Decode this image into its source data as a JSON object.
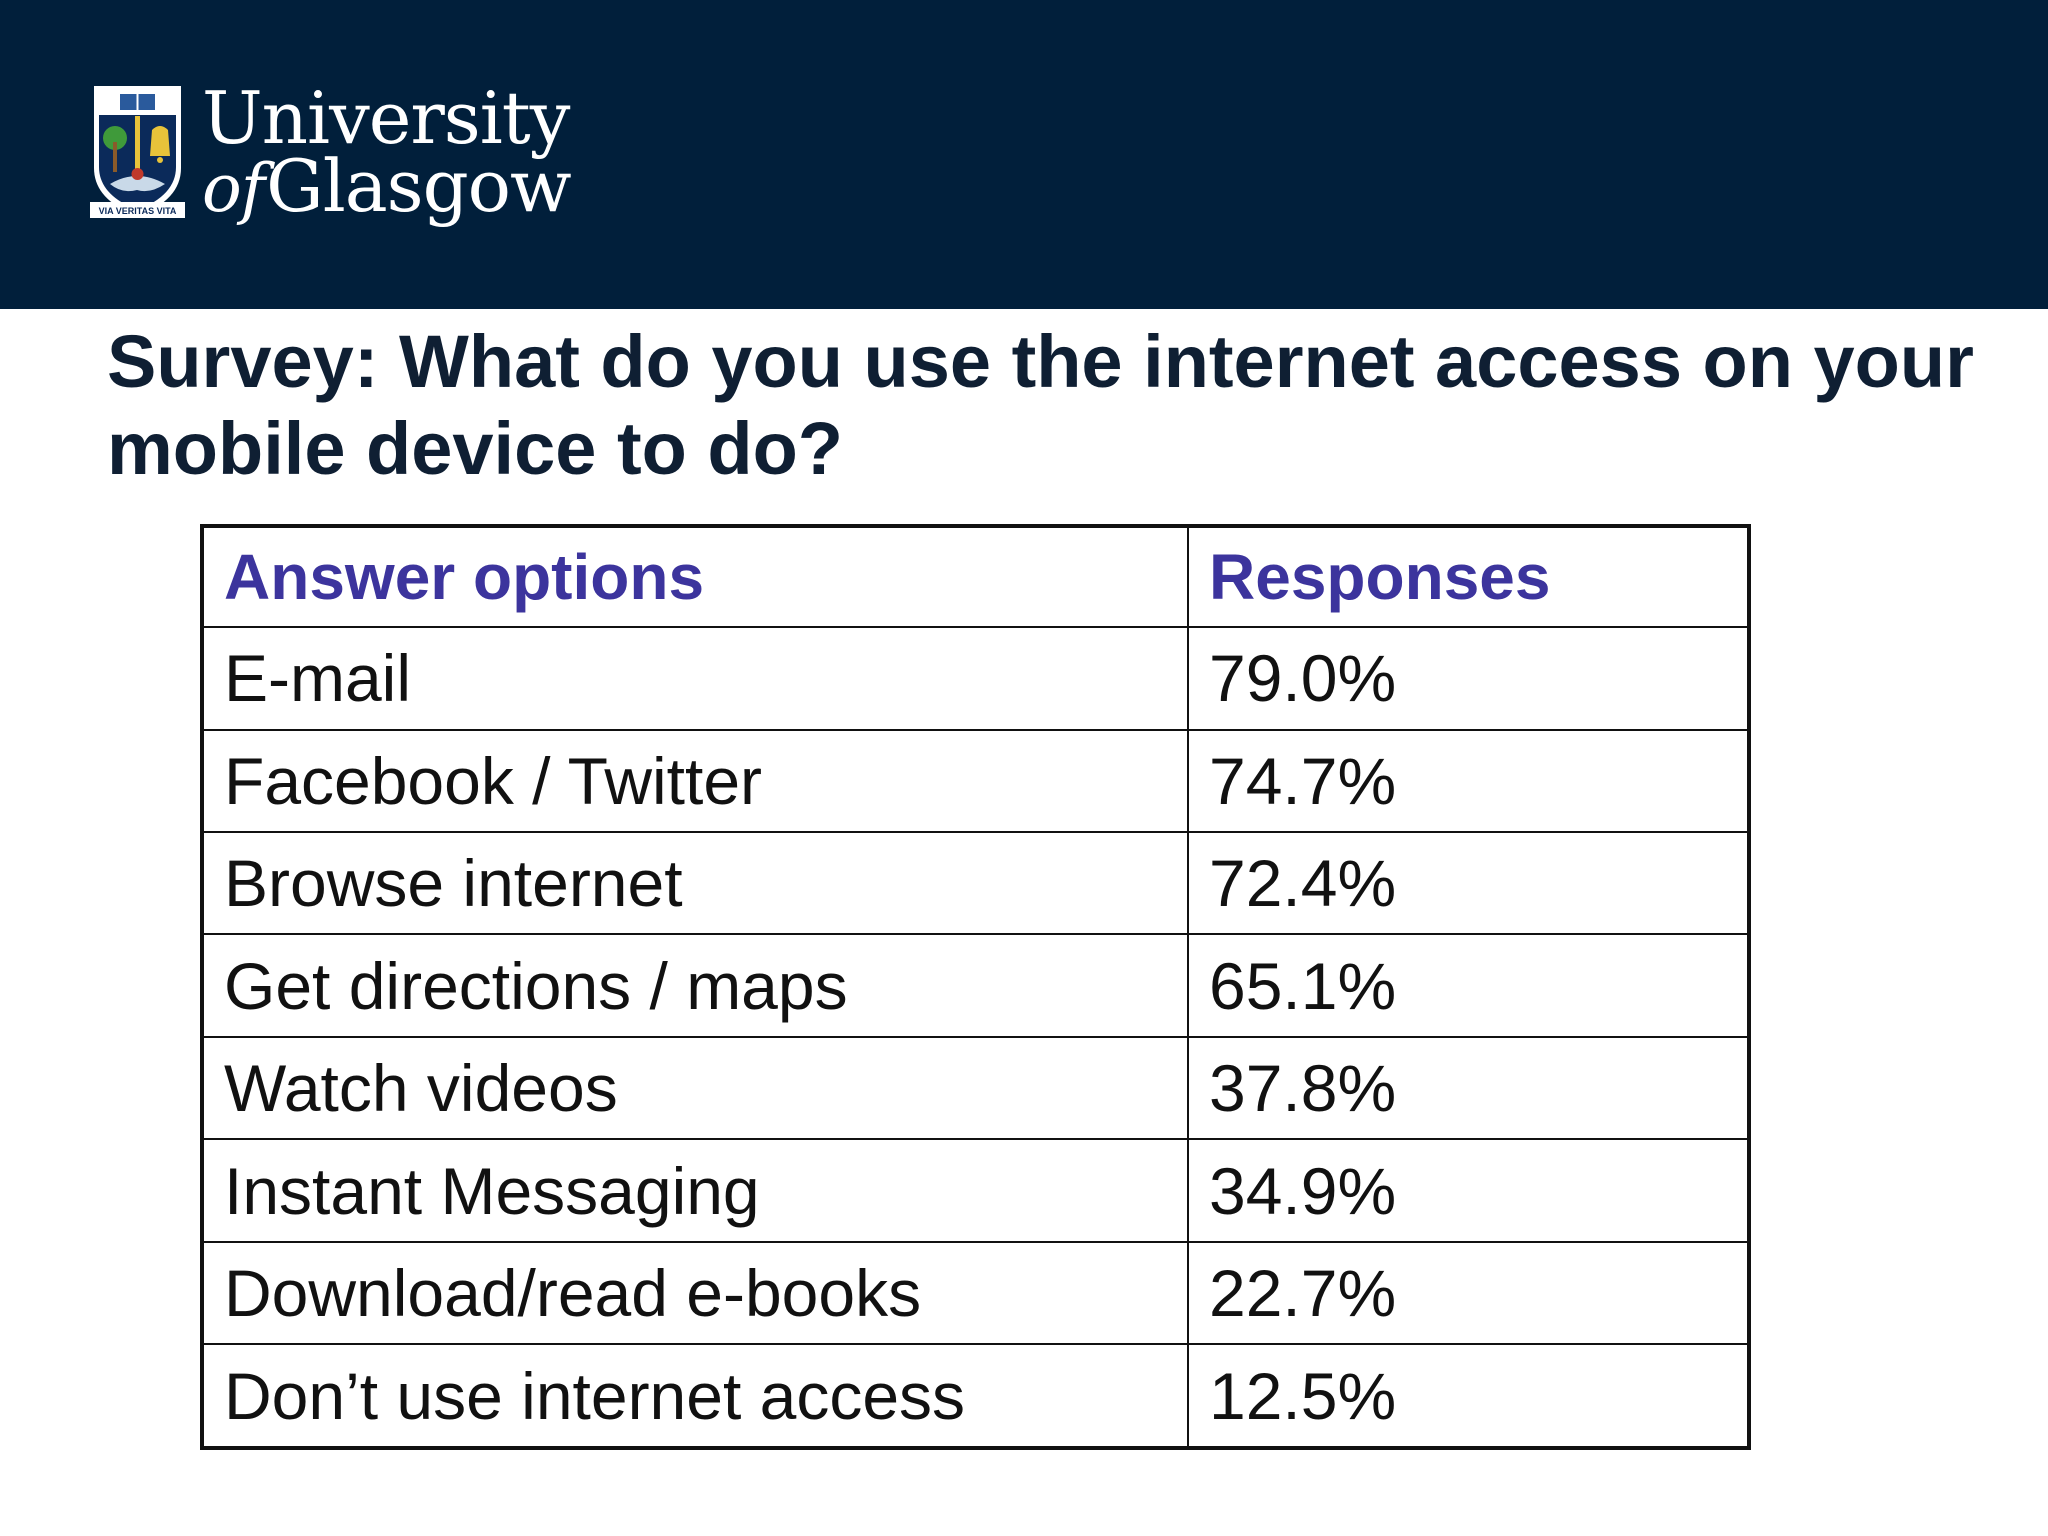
{
  "logo": {
    "line1": "University",
    "line2_of": "of",
    "line2_rest": "Glasgow",
    "crest_motto": "VIA VERITAS VITA"
  },
  "title": "Survey: What do you use the internet access on your mobile device to do?",
  "table": {
    "headers": [
      "Answer options",
      "Responses"
    ],
    "rows": [
      {
        "option": "E-mail",
        "response": "79.0%"
      },
      {
        "option": "Facebook / Twitter",
        "response": "74.7%"
      },
      {
        "option": "Browse internet",
        "response": "72.4%"
      },
      {
        "option": "Get directions / maps",
        "response": "65.1%"
      },
      {
        "option": "Watch videos",
        "response": "37.8%"
      },
      {
        "option": "Instant Messaging",
        "response": "34.9%"
      },
      {
        "option": "Download/read e-books",
        "response": "22.7%"
      },
      {
        "option": "Don’t use internet access",
        "response": "12.5%"
      }
    ]
  },
  "colors": {
    "header_band": "#011f3b",
    "title_text": "#0f1f33",
    "header_text": "#3c349d",
    "body_text": "#111111"
  }
}
